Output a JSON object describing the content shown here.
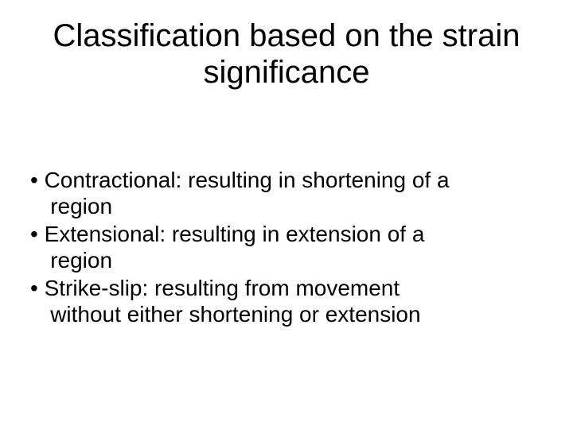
{
  "slide": {
    "title_line1": "Classification based on the strain",
    "title_line2": "significance",
    "bullets": [
      {
        "l1": "• Contractional: resulting in shortening of a",
        "l2": "region"
      },
      {
        "l1": "• Extensional: resulting in extension of a",
        "l2": "region"
      },
      {
        "l1": "• Strike-slip: resulting from movement",
        "l2": "without either shortening or extension"
      }
    ]
  },
  "style": {
    "background_color": "#ffffff",
    "text_color": "#000000",
    "title_fontsize": 40,
    "body_fontsize": 28,
    "font_family": "Arial"
  }
}
